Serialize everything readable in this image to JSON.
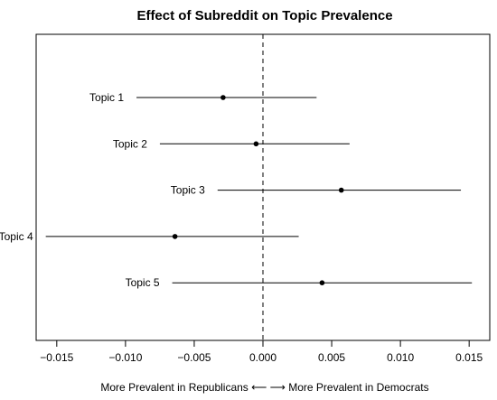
{
  "chart_data": {
    "type": "scatter",
    "title": "Effect of Subreddit on Topic Prevalence",
    "xlabel": "More Prevalent in Republicans ⟵  ⟶ More Prevalent in Democrats",
    "xlim": [
      -0.0165,
      0.0165
    ],
    "xticks": [
      -0.015,
      -0.01,
      -0.005,
      0.0,
      0.005,
      0.01,
      0.015
    ],
    "xtick_labels": [
      "−0.015",
      "−0.010",
      "−0.005",
      "0.000",
      "0.005",
      "0.010",
      "0.015"
    ],
    "reference_line": 0.0,
    "grid": false,
    "points": [
      {
        "label": "Topic 1",
        "estimate": -0.0029,
        "lower": -0.0092,
        "upper": 0.0039
      },
      {
        "label": "Topic 2",
        "estimate": -0.0005,
        "lower": -0.0075,
        "upper": 0.0063
      },
      {
        "label": "Topic 3",
        "estimate": 0.0057,
        "lower": -0.0033,
        "upper": 0.0144
      },
      {
        "label": "Topic 4",
        "estimate": -0.0064,
        "lower": -0.0158,
        "upper": 0.0026
      },
      {
        "label": "Topic 5",
        "estimate": 0.0043,
        "lower": -0.0066,
        "upper": 0.0152
      }
    ]
  }
}
